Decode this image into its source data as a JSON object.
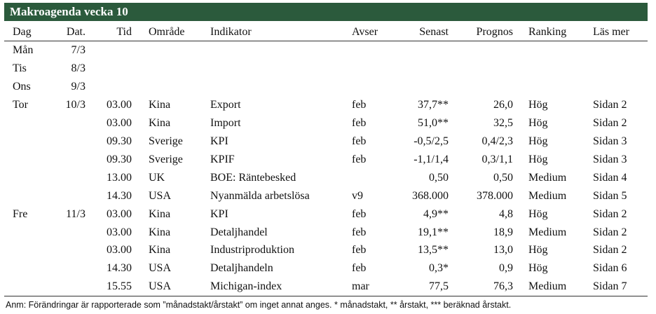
{
  "header": {
    "title": "Makroagenda vecka 10"
  },
  "table": {
    "columns": [
      "Dag",
      "Dat.",
      "Tid",
      "Område",
      "Indikator",
      "Avser",
      "Senast",
      "Prognos",
      "Ranking",
      "Läs mer"
    ],
    "rows": [
      [
        "Mån",
        "7/3",
        null,
        null,
        null,
        null,
        null,
        null,
        null,
        null
      ],
      [
        "Tis",
        "8/3",
        null,
        null,
        null,
        null,
        null,
        null,
        null,
        null
      ],
      [
        "Ons",
        "9/3",
        null,
        null,
        null,
        null,
        null,
        null,
        null,
        null
      ],
      [
        "Tor",
        "10/3",
        "03.00",
        "Kina",
        "Export",
        "feb",
        "37,7**",
        "26,0",
        "Hög",
        "Sidan 2"
      ],
      [
        null,
        null,
        "03.00",
        "Kina",
        "Import",
        "feb",
        "51,0**",
        "32,5",
        "Hög",
        "Sidan 2"
      ],
      [
        null,
        null,
        "09.30",
        "Sverige",
        "KPI",
        "feb",
        "-0,5/2,5",
        "0,4/2,3",
        "Hög",
        "Sidan 3"
      ],
      [
        null,
        null,
        "09.30",
        "Sverige",
        "KPIF",
        "feb",
        "-1,1/1,4",
        "0,3/1,1",
        "Hög",
        "Sidan 3"
      ],
      [
        null,
        null,
        "13.00",
        "UK",
        "BOE: Räntebesked",
        null,
        "0,50",
        "0,50",
        "Medium",
        "Sidan 4"
      ],
      [
        null,
        null,
        "14.30",
        "USA",
        "Nyanmälda arbetslösa",
        "v9",
        "368.000",
        "378.000",
        "Medium",
        "Sidan 5"
      ],
      [
        "Fre",
        "11/3",
        "03.00",
        "Kina",
        "KPI",
        "feb",
        "4,9**",
        "4,8",
        "Hög",
        "Sidan 2"
      ],
      [
        null,
        null,
        "03.00",
        "Kina",
        "Detaljhandel",
        "feb",
        "19,1**",
        "18,9",
        "Medium",
        "Sidan 2"
      ],
      [
        null,
        null,
        "03.00",
        "Kina",
        "Industriproduktion",
        "feb",
        "13,5**",
        "13,0",
        "Hög",
        "Sidan 2"
      ],
      [
        null,
        null,
        "14.30",
        "USA",
        "Detaljhandeln",
        "feb",
        "0,3*",
        "0,9",
        "Hög",
        "Sidan 6"
      ],
      [
        null,
        null,
        "15.55",
        "USA",
        "Michigan-index",
        "mar",
        "77,5",
        "76,3",
        "Medium",
        "Sidan 7"
      ]
    ]
  },
  "footnote": "Anm: Förändringar är rapporterade som ”månadstakt/årstakt” om inget annat anges. * månadstakt, ** årstakt, *** beräknad årstakt."
}
